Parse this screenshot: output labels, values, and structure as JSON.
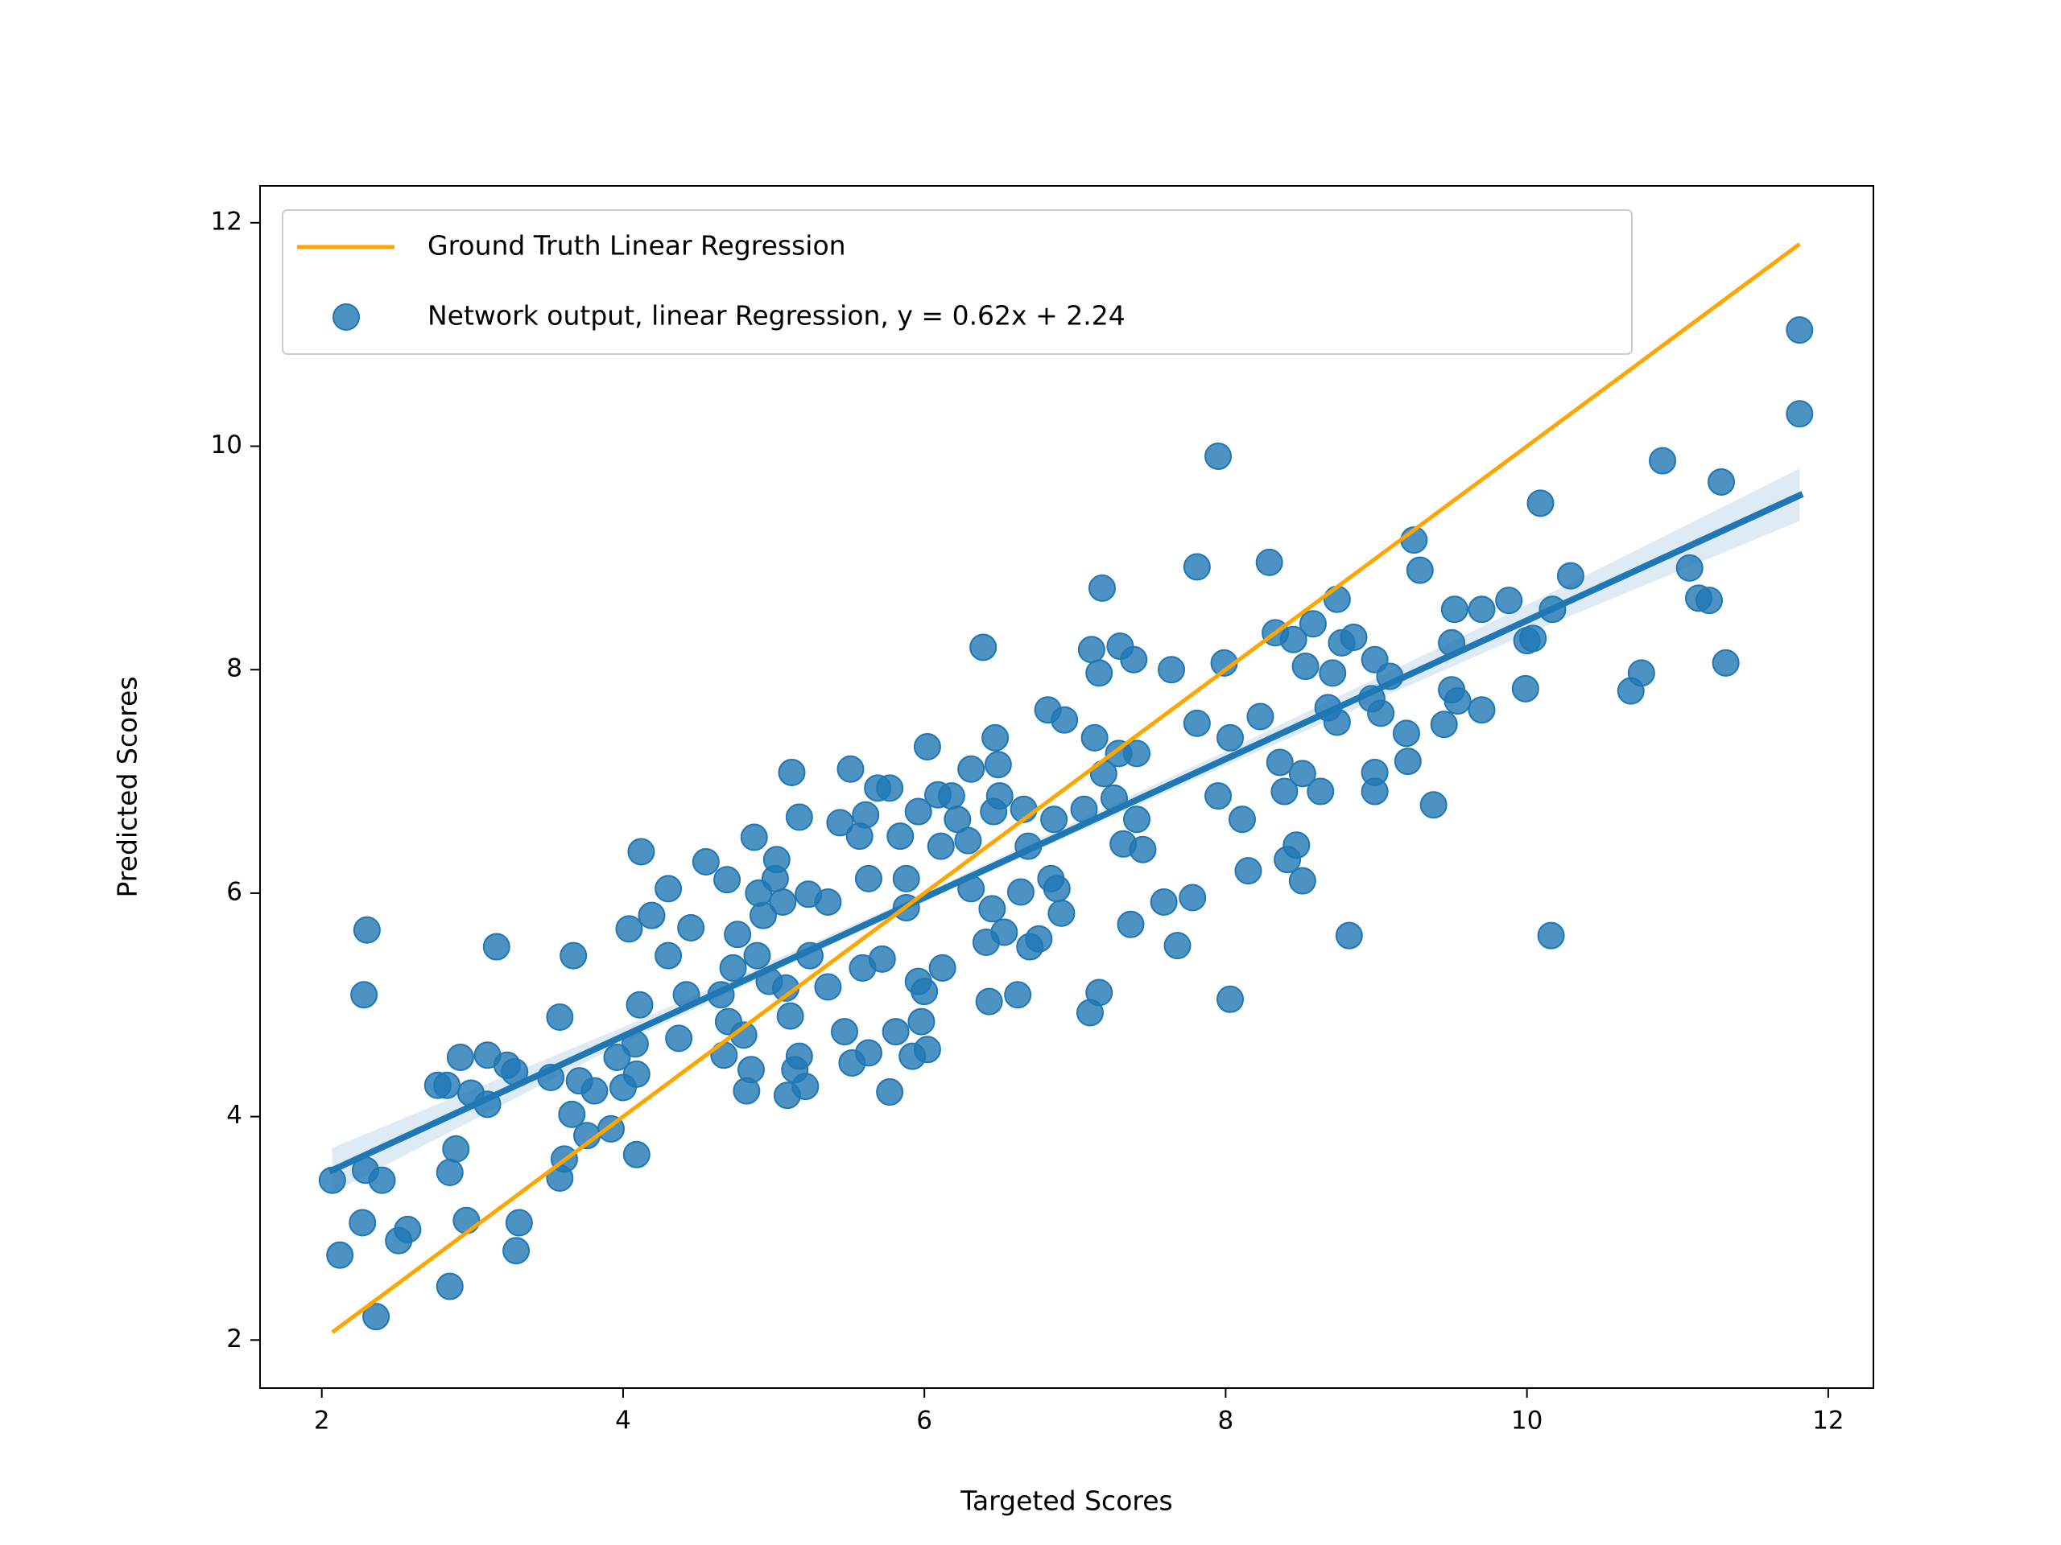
{
  "chart_data": {
    "type": "scatter",
    "xlabel": "Targeted Scores",
    "ylabel": "Predicted Scores",
    "xlim": [
      1.59,
      12.3
    ],
    "ylim": [
      1.57,
      12.33
    ],
    "xticks": [
      2,
      4,
      6,
      8,
      10,
      12
    ],
    "yticks": [
      2,
      4,
      6,
      8,
      10,
      12
    ],
    "legend": "upper left",
    "series": [
      {
        "name": "Ground Truth Linear Regression",
        "type": "line",
        "color": "#ffa500",
        "x": [
          2.07,
          11.81
        ],
        "values": [
          2.07,
          11.81
        ]
      },
      {
        "name": "Network output, linear Regression, y = 0.62x + 2.24",
        "type": "scatter",
        "color": "#1f77b4",
        "x": [
          2.07,
          2.12,
          2.3,
          2.28,
          2.29,
          2.4,
          2.27,
          2.36,
          2.51,
          2.57,
          2.77,
          2.83,
          2.92,
          2.89,
          2.85,
          2.85,
          2.96,
          2.99,
          3.1,
          3.1,
          3.16,
          3.23,
          3.28,
          3.29,
          3.31,
          3.52,
          3.58,
          3.58,
          3.61,
          3.67,
          3.66,
          3.71,
          3.76,
          3.81,
          3.92,
          3.96,
          4.0,
          4.04,
          4.08,
          4.09,
          4.11,
          4.09,
          4.12,
          4.19,
          4.3,
          4.3,
          4.37,
          4.42,
          4.45,
          4.55,
          4.65,
          4.69,
          4.67,
          4.7,
          4.73,
          4.76,
          4.8,
          4.82,
          4.85,
          4.87,
          4.89,
          4.9,
          4.93,
          4.97,
          5.01,
          5.02,
          5.06,
          5.08,
          5.09,
          5.11,
          5.12,
          5.14,
          5.17,
          5.17,
          5.21,
          5.23,
          5.24,
          5.36,
          5.36,
          5.44,
          5.47,
          5.51,
          5.52,
          5.57,
          5.59,
          5.61,
          5.63,
          5.63,
          5.69,
          5.72,
          5.77,
          5.77,
          5.81,
          5.84,
          5.88,
          5.88,
          5.92,
          5.96,
          5.96,
          5.98,
          6.0,
          6.02,
          6.02,
          6.09,
          6.11,
          6.12,
          6.18,
          6.22,
          6.29,
          6.31,
          6.31,
          6.39,
          6.41,
          6.43,
          6.45,
          6.46,
          6.47,
          6.49,
          6.5,
          6.53,
          6.62,
          6.64,
          6.66,
          6.69,
          6.7,
          6.76,
          6.82,
          6.84,
          6.86,
          6.88,
          6.91,
          6.93,
          7.06,
          7.1,
          7.11,
          7.13,
          7.16,
          7.16,
          7.18,
          7.19,
          7.26,
          7.29,
          7.3,
          7.32,
          7.37,
          7.39,
          7.41,
          7.41,
          7.45,
          7.59,
          7.64,
          7.68,
          7.78,
          7.81,
          7.81,
          7.95,
          7.95,
          7.99,
          8.03,
          8.03,
          8.11,
          8.15,
          8.23,
          8.29,
          8.33,
          8.36,
          8.39,
          8.41,
          8.45,
          8.47,
          8.51,
          8.51,
          8.53,
          8.58,
          8.63,
          8.68,
          8.71,
          8.74,
          8.74,
          8.77,
          8.82,
          8.85,
          8.97,
          8.99,
          8.99,
          8.99,
          9.03,
          9.09,
          9.2,
          9.21,
          9.25,
          9.29,
          9.38,
          9.45,
          9.5,
          9.52,
          9.5,
          9.54,
          9.7,
          9.7,
          9.88,
          9.99,
          10.0,
          10.04,
          10.09,
          10.16,
          10.17,
          10.29,
          10.69,
          10.76,
          10.9,
          11.08,
          11.14,
          11.21,
          11.29,
          11.32,
          11.81,
          11.81
        ],
        "values": [
          3.43,
          2.76,
          5.67,
          5.09,
          3.52,
          3.43,
          3.05,
          2.21,
          2.89,
          2.99,
          4.28,
          4.28,
          4.53,
          3.71,
          3.5,
          2.48,
          3.07,
          4.21,
          4.55,
          4.11,
          5.52,
          4.46,
          4.4,
          2.8,
          3.05,
          4.35,
          4.89,
          3.45,
          3.62,
          5.44,
          4.02,
          4.32,
          3.83,
          4.23,
          3.89,
          4.53,
          4.26,
          5.68,
          4.65,
          3.66,
          5.0,
          4.38,
          6.37,
          5.8,
          6.04,
          5.44,
          4.7,
          5.09,
          5.69,
          6.28,
          5.09,
          6.12,
          4.55,
          4.85,
          5.33,
          5.63,
          4.73,
          4.23,
          4.42,
          6.5,
          5.44,
          6.0,
          5.8,
          5.21,
          6.13,
          6.3,
          5.92,
          5.15,
          4.19,
          4.9,
          7.08,
          4.42,
          4.54,
          6.68,
          4.27,
          5.99,
          5.44,
          5.16,
          5.92,
          6.63,
          4.76,
          7.11,
          4.48,
          6.51,
          5.33,
          6.7,
          4.57,
          6.13,
          6.94,
          5.41,
          4.22,
          6.94,
          4.76,
          6.51,
          6.13,
          5.87,
          4.54,
          6.73,
          5.21,
          4.85,
          5.12,
          4.6,
          7.31,
          6.88,
          6.42,
          5.33,
          6.87,
          6.66,
          6.47,
          7.11,
          6.04,
          8.2,
          5.56,
          5.03,
          5.86,
          6.73,
          7.39,
          7.15,
          6.87,
          5.65,
          5.09,
          6.01,
          6.75,
          6.42,
          5.52,
          5.59,
          7.64,
          6.13,
          6.66,
          6.04,
          5.82,
          7.55,
          6.75,
          4.93,
          8.18,
          7.39,
          7.97,
          5.11,
          8.73,
          7.07,
          6.85,
          7.25,
          8.21,
          6.44,
          5.72,
          8.09,
          7.25,
          6.66,
          6.39,
          5.92,
          8.0,
          5.53,
          5.96,
          8.92,
          7.52,
          9.91,
          6.87,
          8.06,
          5.05,
          7.39,
          6.66,
          6.2,
          7.58,
          8.96,
          8.33,
          7.17,
          6.91,
          6.3,
          8.27,
          6.43,
          6.11,
          7.07,
          8.03,
          8.41,
          6.91,
          7.66,
          7.97,
          8.63,
          7.53,
          8.24,
          5.62,
          8.29,
          7.74,
          8.09,
          7.08,
          6.91,
          7.61,
          7.94,
          7.43,
          7.18,
          9.16,
          8.89,
          6.79,
          7.51,
          8.24,
          8.54,
          7.82,
          7.72,
          8.54,
          7.64,
          8.62,
          7.83,
          8.26,
          8.28,
          9.49,
          5.62,
          8.54,
          8.84,
          7.81,
          7.97,
          9.87,
          8.91,
          8.64,
          8.62,
          9.68,
          8.06,
          11.04,
          10.29
        ]
      }
    ],
    "fit": {
      "color": "#1f77b4",
      "x": [
        2.07,
        4,
        6,
        8,
        10,
        11.81
      ],
      "values": [
        3.52,
        4.72,
        5.96,
        7.2,
        8.44,
        9.56
      ],
      "lower": [
        3.32,
        4.66,
        5.93,
        7.14,
        8.32,
        9.33
      ],
      "upper": [
        3.72,
        4.8,
        6.0,
        7.27,
        8.58,
        9.8
      ]
    }
  }
}
